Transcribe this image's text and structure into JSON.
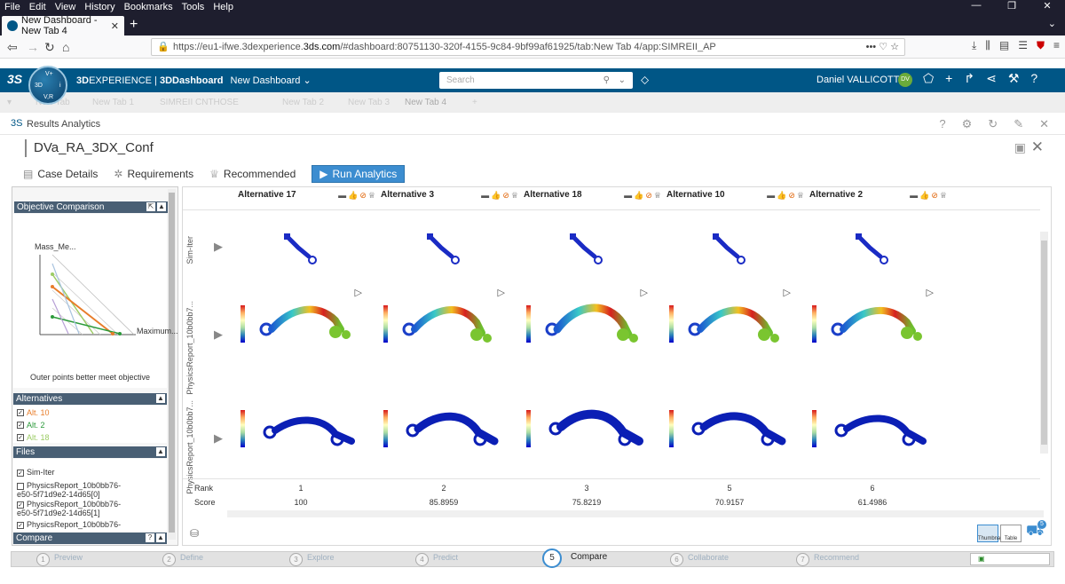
{
  "browser": {
    "menu": [
      "File",
      "Edit",
      "View",
      "History",
      "Bookmarks",
      "Tools",
      "Help"
    ],
    "tab_title": "New Dashboard - New Tab 4",
    "url_prefix": "https://eu1-ifwe.3dexperience.",
    "url_domain": "3ds.com",
    "url_suffix": "/#dashboard:80751130-320f-4155-9c84-9bf99af61925/tab:New Tab 4/app:SIMREII_AP"
  },
  "topbar": {
    "ds_logo": "3S",
    "compass": {
      "top": "V+",
      "left": "3D",
      "right": "i",
      "bottom": "V,R"
    },
    "brand_bold": "3D",
    "brand_rest": "EXPERIENCE | ",
    "brand_product": "3DDashboard",
    "dashboard_name": "New Dashboard",
    "search_placeholder": "Search",
    "user_name": "Daniel VALLICOTTI",
    "user_initials": "DV"
  },
  "dashboard_tabs": [
    "New Tab",
    "New Tab 1",
    "SIMREII CNTHOSE",
    "New Tab 2",
    "New Tab 3",
    "New Tab 4"
  ],
  "app": {
    "title": "Results Analytics",
    "case_title": "DVa_RA_3DX_Conf",
    "toolbar": [
      {
        "label": "Case Details",
        "icon": "case-details-icon"
      },
      {
        "label": "Requirements",
        "icon": "requirements-icon"
      },
      {
        "label": "Recommended",
        "icon": "trophy-icon"
      },
      {
        "label": "Run Analytics",
        "icon": "play-icon"
      }
    ]
  },
  "left_panel": {
    "objective": {
      "header": "Objective Comparison",
      "axis1": "Mass_Me...",
      "axis2": "Maximum...",
      "caption": "Outer points better meet objective"
    },
    "alternatives": {
      "header": "Alternatives",
      "items": [
        {
          "label": "Alt. 10",
          "checked": true,
          "color": "#e87d2a"
        },
        {
          "label": "Alt. 2",
          "checked": true,
          "color": "#2b9a3a"
        },
        {
          "label": "Alt. 18",
          "checked": true,
          "color": "#9ccc65"
        }
      ]
    },
    "files": {
      "header": "Files",
      "items": [
        {
          "label": "Sim-Iter",
          "checked": true
        },
        {
          "label": "PhysicsReport_10b0bb76-e50-5f71d9e2-14d65[0]",
          "line1": "PhysicsReport_10b0bb76-",
          "line2": "e50-5f71d9e2-14d65[0]",
          "checked": false
        },
        {
          "label": "PhysicsReport_10b0bb76-e50-5f71d9e2-14d65[1]",
          "line1": "PhysicsReport_10b0bb76-",
          "line2": "e50-5f71d9e2-14d65[1]",
          "checked": true
        },
        {
          "label": "PhysicsReport_10b0bb76-",
          "checked": true
        }
      ]
    },
    "compare": {
      "header": "Compare"
    }
  },
  "main": {
    "alternatives": [
      {
        "name": "Alternative 17",
        "rank": "1",
        "score": "100"
      },
      {
        "name": "Alternative 3",
        "rank": "2",
        "score": "85.8959"
      },
      {
        "name": "Alternative 18",
        "rank": "3",
        "score": "75.8219"
      },
      {
        "name": "Alternative 10",
        "rank": "5",
        "score": "70.9157"
      },
      {
        "name": "Alternative 2",
        "rank": "6",
        "score": "61.4986"
      }
    ],
    "row_labels": [
      "Sim-Iter",
      "PhysicsReport_10b0bb7...",
      "PhysicsReport_10b0bb7..."
    ],
    "rank_label": "Rank",
    "score_label": "Score",
    "views": [
      "Thumbnail",
      "Table"
    ],
    "cart_count": "5"
  },
  "steps": [
    {
      "n": "1",
      "label": "Preview"
    },
    {
      "n": "2",
      "label": "Define"
    },
    {
      "n": "3",
      "label": "Explore"
    },
    {
      "n": "4",
      "label": "Predict"
    },
    {
      "n": "5",
      "label": "Compare",
      "active": true
    },
    {
      "n": "6",
      "label": "Collaborate"
    },
    {
      "n": "7",
      "label": "Recommend"
    }
  ]
}
